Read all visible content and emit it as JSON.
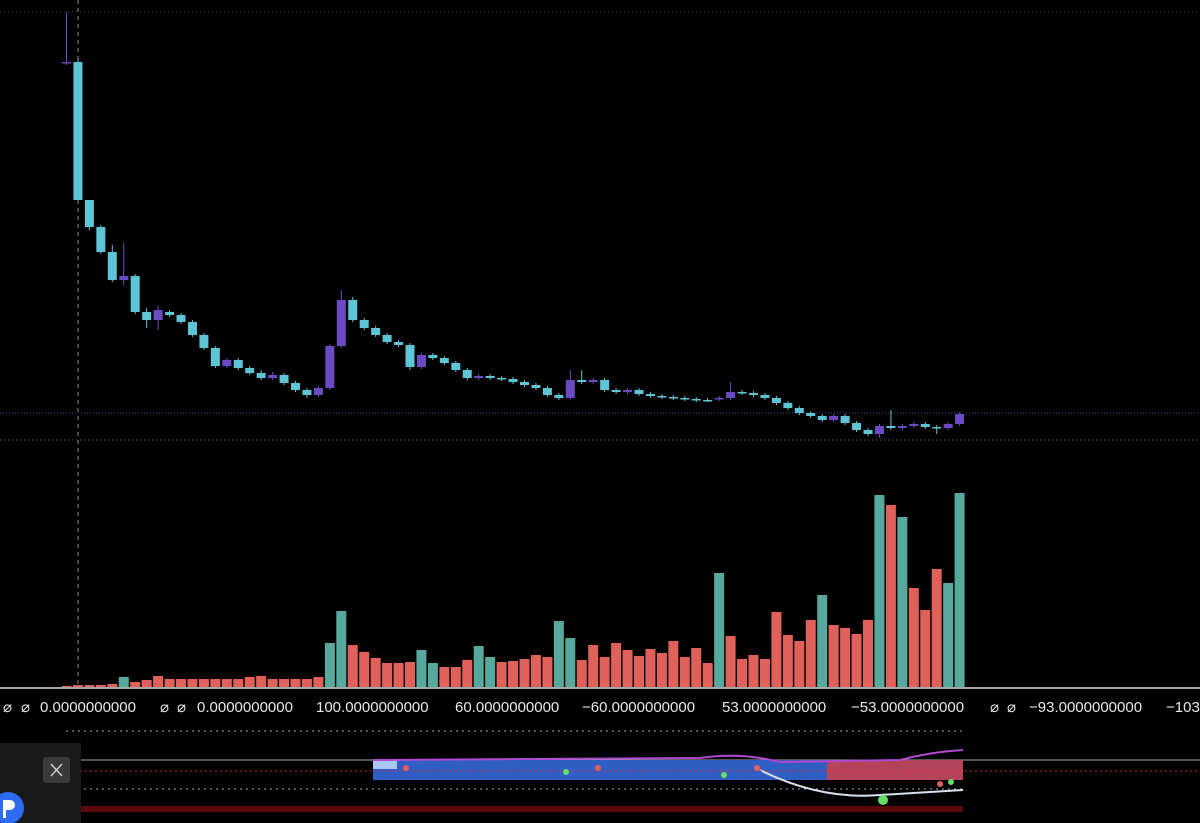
{
  "chart_data": [
    {
      "type": "candlestick",
      "up_color": "#6a4bc4",
      "down_color": "#5ec5d6",
      "ylim": [
        0,
        430
      ],
      "open": [
        378,
        378,
        240,
        213,
        188,
        160,
        164,
        128,
        120,
        128,
        125,
        118,
        105,
        92,
        74,
        80,
        72,
        67,
        62,
        65,
        57,
        50,
        45,
        52,
        94,
        140,
        120,
        112,
        105,
        98,
        95,
        73,
        85,
        82,
        77,
        70,
        62,
        64,
        62,
        61,
        58,
        55,
        52,
        45,
        42,
        60,
        58,
        60,
        50,
        48,
        50,
        46,
        44,
        43,
        42,
        41,
        40,
        41,
        42,
        48,
        47,
        45,
        42,
        37,
        32,
        27,
        24,
        20,
        24,
        17,
        10,
        6,
        14,
        12,
        14,
        16,
        13,
        12,
        16
      ],
      "high": [
        428,
        382,
        240,
        215,
        195,
        197,
        166,
        132,
        135,
        130,
        127,
        120,
        107,
        94,
        82,
        82,
        74,
        70,
        68,
        67,
        59,
        52,
        54,
        96,
        150,
        143,
        122,
        114,
        107,
        100,
        97,
        87,
        87,
        84,
        79,
        72,
        66,
        66,
        64,
        63,
        60,
        57,
        54,
        47,
        70,
        70,
        62,
        62,
        52,
        52,
        52,
        48,
        46,
        45,
        44,
        43,
        42,
        44,
        58,
        50,
        49,
        47,
        44,
        39,
        34,
        29,
        26,
        26,
        26,
        19,
        12,
        16,
        30,
        16,
        18,
        18,
        15,
        18,
        28
      ],
      "low": [
        375,
        240,
        210,
        186,
        158,
        155,
        126,
        112,
        110,
        123,
        116,
        103,
        90,
        72,
        72,
        70,
        65,
        60,
        60,
        55,
        48,
        42,
        43,
        50,
        92,
        118,
        110,
        103,
        96,
        93,
        70,
        71,
        80,
        75,
        68,
        60,
        60,
        60,
        59,
        56,
        53,
        50,
        43,
        40,
        40,
        56,
        56,
        48,
        46,
        46,
        44,
        42,
        41,
        40,
        39,
        38,
        38,
        39,
        40,
        45,
        43,
        40,
        35,
        30,
        25,
        22,
        18,
        18,
        15,
        8,
        4,
        2,
        10,
        10,
        12,
        11,
        6,
        10,
        14
      ],
      "close": [
        378,
        240,
        213,
        188,
        160,
        164,
        128,
        120,
        130,
        125,
        118,
        105,
        92,
        74,
        80,
        72,
        67,
        62,
        65,
        57,
        50,
        45,
        52,
        94,
        140,
        120,
        112,
        105,
        98,
        95,
        73,
        85,
        82,
        77,
        70,
        62,
        64,
        62,
        61,
        58,
        55,
        52,
        45,
        42,
        60,
        58,
        60,
        50,
        48,
        50,
        46,
        44,
        43,
        42,
        41,
        40,
        39,
        42,
        48,
        47,
        45,
        42,
        37,
        32,
        27,
        24,
        20,
        24,
        17,
        10,
        6,
        14,
        12,
        14,
        16,
        13,
        12,
        16,
        26
      ]
    },
    {
      "type": "bar",
      "ylim": [
        0,
        200
      ],
      "values": [
        1,
        2,
        2,
        2,
        3,
        10,
        5,
        7,
        11,
        8,
        8,
        8,
        8,
        8,
        8,
        8,
        10,
        11,
        8,
        8,
        8,
        8,
        10,
        44,
        76,
        42,
        35,
        29,
        24,
        24,
        25,
        37,
        24,
        20,
        20,
        27,
        41,
        30,
        25,
        26,
        28,
        32,
        30,
        66,
        49,
        27,
        42,
        30,
        44,
        37,
        31,
        38,
        34,
        46,
        30,
        39,
        24,
        114,
        51,
        28,
        32,
        28,
        75,
        52,
        46,
        67,
        92,
        62,
        59,
        53,
        67,
        192,
        182,
        170,
        99,
        77,
        118,
        104,
        194
      ],
      "colors": [
        "#e0605a",
        "#e0605a",
        "#e0605a",
        "#e0605a",
        "#e0605a",
        "#56a99c",
        "#e0605a",
        "#e0605a",
        "#e0605a",
        "#e0605a",
        "#e0605a",
        "#e0605a",
        "#e0605a",
        "#e0605a",
        "#e0605a",
        "#e0605a",
        "#e0605a",
        "#e0605a",
        "#e0605a",
        "#e0605a",
        "#e0605a",
        "#e0605a",
        "#e0605a",
        "#56a99c",
        "#56a99c",
        "#e0605a",
        "#e0605a",
        "#e0605a",
        "#e0605a",
        "#e0605a",
        "#e0605a",
        "#56a99c",
        "#56a99c",
        "#e0605a",
        "#e0605a",
        "#e0605a",
        "#56a99c",
        "#56a99c",
        "#e0605a",
        "#e0605a",
        "#e0605a",
        "#e0605a",
        "#e0605a",
        "#56a99c",
        "#56a99c",
        "#e0605a",
        "#e0605a",
        "#e0605a",
        "#e0605a",
        "#e0605a",
        "#e0605a",
        "#e0605a",
        "#e0605a",
        "#e0605a",
        "#e0605a",
        "#e0605a",
        "#e0605a",
        "#56a99c",
        "#e0605a",
        "#e0605a",
        "#e0605a",
        "#e0605a",
        "#e0605a",
        "#e0605a",
        "#e0605a",
        "#e0605a",
        "#56a99c",
        "#e0605a",
        "#e0605a",
        "#e0605a",
        "#e0605a",
        "#56a99c",
        "#e0605a",
        "#56a99c",
        "#e0605a",
        "#e0605a",
        "#e0605a",
        "#56a99c",
        "#56a99c"
      ]
    }
  ],
  "status_bar": {
    "items": [
      {
        "text": "⌀",
        "color": "#d8d8d8"
      },
      {
        "text": "⌀",
        "color": "#d8d8d8"
      },
      {
        "text": "0.0000000000",
        "color": "#7be35a"
      },
      {
        "text": "⌀",
        "color": "#d8d8d8"
      },
      {
        "text": "⌀",
        "color": "#d8d8d8"
      },
      {
        "text": "0.0000000000",
        "color": "#ececec"
      },
      {
        "text": "100.0000000000",
        "color": "#ececec"
      },
      {
        "text": "60.0000000000",
        "color": "#ececec"
      },
      {
        "text": "−60.0000000000",
        "color": "#ececec"
      },
      {
        "text": "53.0000000000",
        "color": "#ececec"
      },
      {
        "text": "−53.0000000000",
        "color": "#ececec"
      },
      {
        "text": "⌀",
        "color": "#d8d8d8"
      },
      {
        "text": "⌀",
        "color": "#d8d8d8"
      },
      {
        "text": "−93.0000000000",
        "color": "#ececec"
      },
      {
        "text": "−103",
        "color": "#ececec"
      }
    ]
  }
}
